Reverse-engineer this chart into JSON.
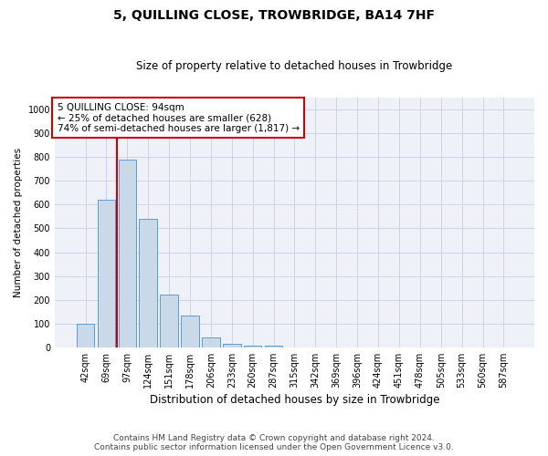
{
  "title": "5, QUILLING CLOSE, TROWBRIDGE, BA14 7HF",
  "subtitle": "Size of property relative to detached houses in Trowbridge",
  "xlabel": "Distribution of detached houses by size in Trowbridge",
  "ylabel": "Number of detached properties",
  "bar_color": "#c9d9e8",
  "bar_edge_color": "#5b9bd5",
  "background_color": "#ffffff",
  "plot_bg_color": "#eef2f8",
  "grid_color": "#c8d0de",
  "vline_x": 1.5,
  "vline_color": "#cc0000",
  "annotation_text": "5 QUILLING CLOSE: 94sqm\n← 25% of detached houses are smaller (628)\n74% of semi-detached houses are larger (1,817) →",
  "annotation_box_facecolor": "#ffffff",
  "annotation_box_edgecolor": "#cc0000",
  "categories": [
    "42sqm",
    "69sqm",
    "97sqm",
    "124sqm",
    "151sqm",
    "178sqm",
    "206sqm",
    "233sqm",
    "260sqm",
    "287sqm",
    "315sqm",
    "342sqm",
    "369sqm",
    "396sqm",
    "424sqm",
    "451sqm",
    "478sqm",
    "505sqm",
    "533sqm",
    "560sqm",
    "587sqm"
  ],
  "values": [
    100,
    620,
    790,
    540,
    220,
    135,
    43,
    15,
    8,
    8,
    0,
    0,
    0,
    0,
    0,
    0,
    0,
    0,
    0,
    0,
    0
  ],
  "ylim": [
    0,
    1050
  ],
  "yticks": [
    0,
    100,
    200,
    300,
    400,
    500,
    600,
    700,
    800,
    900,
    1000
  ],
  "footer_line1": "Contains HM Land Registry data © Crown copyright and database right 2024.",
  "footer_line2": "Contains public sector information licensed under the Open Government Licence v3.0.",
  "figsize": [
    6.0,
    5.0
  ],
  "dpi": 100,
  "title_fontsize": 10,
  "subtitle_fontsize": 8.5,
  "xlabel_fontsize": 8.5,
  "ylabel_fontsize": 7.5,
  "tick_fontsize": 7,
  "footer_fontsize": 6.5,
  "annot_fontsize": 7.5
}
